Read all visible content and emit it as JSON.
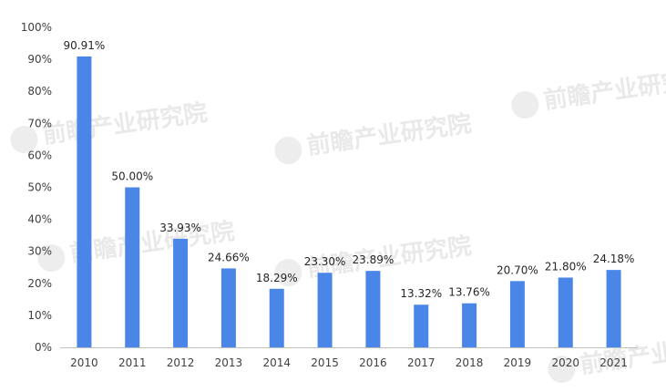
{
  "chart_data": {
    "type": "bar",
    "title": "",
    "xlabel": "",
    "ylabel": "",
    "categories": [
      "2010",
      "2011",
      "2012",
      "2013",
      "2014",
      "2015",
      "2016",
      "2017",
      "2018",
      "2019",
      "2020",
      "2021"
    ],
    "values": [
      90.91,
      50.0,
      33.93,
      24.66,
      18.29,
      23.3,
      23.89,
      13.32,
      13.76,
      20.7,
      21.8,
      24.18
    ],
    "data_labels": [
      "90.91%",
      "50.00%",
      "33.93%",
      "24.66%",
      "18.29%",
      "23.30%",
      "23.89%",
      "13.32%",
      "13.76%",
      "20.70%",
      "21.80%",
      "24.18%"
    ],
    "ylim": [
      0,
      100
    ],
    "y_ticks": [
      0,
      10,
      20,
      30,
      40,
      50,
      60,
      70,
      80,
      90,
      100
    ],
    "y_tick_labels": [
      "0%",
      "10%",
      "20%",
      "30%",
      "40%",
      "50%",
      "60%",
      "70%",
      "80%",
      "90%",
      "100%"
    ],
    "grid": false,
    "legend": "none",
    "bar_color": "#4a86e8"
  },
  "watermark": {
    "text": "前瞻产业研究院"
  }
}
